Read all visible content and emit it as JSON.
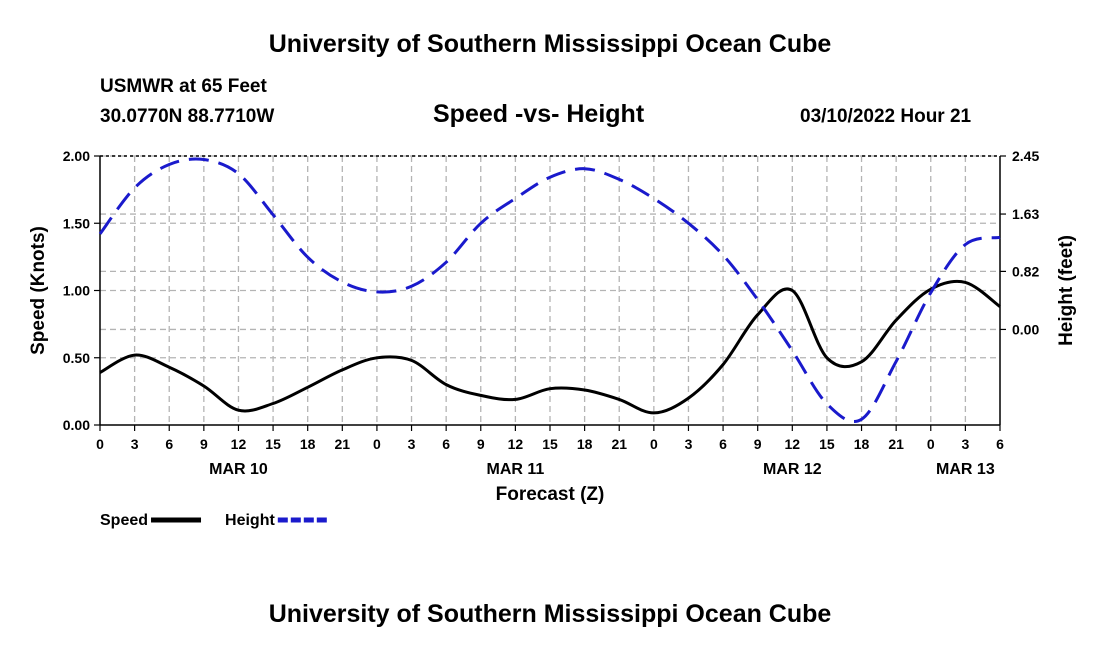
{
  "header": {
    "title": "University of Southern Mississippi Ocean Cube",
    "station": "USMWR at 65 Feet",
    "coords": "30.0770N  88.7710W",
    "subtitle": "Speed -vs- Height",
    "datetime": "03/10/2022 Hour 21"
  },
  "footer": {
    "title": "University of Southern Mississippi Ocean Cube"
  },
  "chart_data": {
    "type": "line",
    "title": "Speed -vs- Height",
    "xlabel": "Forecast (Z)",
    "ylabel": "Speed (Knots)",
    "y2label": "Height (feet)",
    "xlim": [
      0,
      78
    ],
    "ylim": [
      0,
      2
    ],
    "y2lim": [
      -1.35,
      2.45
    ],
    "grid": true,
    "x_ticks": [
      0,
      3,
      6,
      9,
      12,
      15,
      18,
      21,
      24,
      27,
      30,
      33,
      36,
      39,
      42,
      45,
      48,
      51,
      54,
      57,
      60,
      63,
      66,
      69,
      72,
      75,
      78
    ],
    "x_tick_labels": [
      "0",
      "3",
      "6",
      "9",
      "12",
      "15",
      "18",
      "21",
      "0",
      "3",
      "6",
      "9",
      "12",
      "15",
      "18",
      "21",
      "0",
      "3",
      "6",
      "9",
      "12",
      "15",
      "18",
      "21",
      "0",
      "3",
      "6"
    ],
    "date_labels": [
      {
        "hour": 12,
        "label": "MAR 10"
      },
      {
        "hour": 36,
        "label": "MAR 11"
      },
      {
        "hour": 60,
        "label": "MAR 12"
      },
      {
        "hour": 75,
        "label": "MAR 13"
      }
    ],
    "y_ticks": [
      0,
      0.5,
      1.0,
      1.5,
      2.0
    ],
    "y_tick_labels": [
      "0.00",
      "0.50",
      "1.00",
      "1.50",
      "2.00"
    ],
    "y2_ticks": [
      0.0,
      0.82,
      1.63,
      2.45
    ],
    "y2_tick_labels": [
      "0.00",
      "0.82",
      "1.63",
      "2.45"
    ],
    "series": [
      {
        "name": "Speed",
        "axis": "left",
        "color": "#000000",
        "dash": "solid",
        "x": [
          0,
          3,
          6,
          9,
          12,
          15,
          18,
          21,
          24,
          27,
          30,
          33,
          36,
          39,
          42,
          45,
          48,
          51,
          54,
          57,
          60,
          63,
          66,
          69,
          72,
          75,
          78
        ],
        "values": [
          0.39,
          0.52,
          0.43,
          0.29,
          0.11,
          0.16,
          0.28,
          0.41,
          0.5,
          0.48,
          0.3,
          0.22,
          0.19,
          0.27,
          0.26,
          0.19,
          0.09,
          0.2,
          0.45,
          0.82,
          1.0,
          0.5,
          0.47,
          0.78,
          1.01,
          1.06,
          0.88
        ]
      },
      {
        "name": "Height",
        "axis": "right",
        "color": "#1a1acc",
        "dash": "dashed",
        "x": [
          0,
          3,
          6,
          9,
          12,
          15,
          18,
          21,
          24,
          27,
          30,
          33,
          36,
          39,
          42,
          45,
          48,
          51,
          54,
          57,
          60,
          63,
          66,
          69,
          72,
          75,
          78
        ],
        "values": [
          1.35,
          2.0,
          2.33,
          2.4,
          2.2,
          1.62,
          1.02,
          0.67,
          0.53,
          0.61,
          0.95,
          1.5,
          1.85,
          2.15,
          2.27,
          2.12,
          1.85,
          1.5,
          1.05,
          0.42,
          -0.3,
          -1.05,
          -1.27,
          -0.45,
          0.52,
          1.2,
          1.3
        ]
      }
    ],
    "legend": [
      {
        "label": "Speed",
        "color": "#000000",
        "dash": "solid"
      },
      {
        "label": "Height",
        "color": "#1a1acc",
        "dash": "dashed"
      }
    ]
  }
}
